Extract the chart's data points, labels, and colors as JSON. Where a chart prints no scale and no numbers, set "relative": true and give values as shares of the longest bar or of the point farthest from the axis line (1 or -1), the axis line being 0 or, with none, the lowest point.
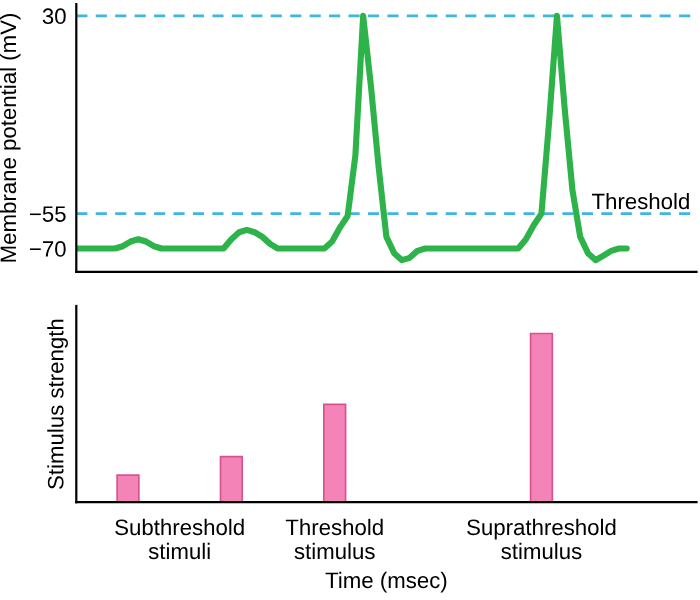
{
  "chart_data": [
    {
      "type": "line",
      "ylabel": "Membrane potential (mV)",
      "ylim": [
        -80,
        35
      ],
      "yticks": [
        30,
        -55,
        -70
      ],
      "tick_labels": "y",
      "grid": false,
      "categories": [
        null,
        null,
        null,
        null,
        null,
        null,
        null,
        null,
        null,
        null,
        null,
        null,
        null,
        null,
        null,
        null,
        null,
        null,
        null,
        null,
        null,
        null,
        null,
        null,
        null,
        null,
        null,
        null,
        null,
        null,
        null,
        null,
        null,
        null,
        null,
        null,
        null,
        null,
        null,
        null,
        null,
        null,
        null,
        null,
        null,
        null,
        null,
        null,
        null,
        null,
        null,
        null,
        null,
        null,
        null,
        null,
        null,
        null,
        null,
        null,
        null,
        null,
        null,
        null,
        null,
        null,
        null,
        null,
        null,
        null,
        null,
        null,
        null,
        null,
        null,
        null,
        null,
        null,
        null,
        null,
        null
      ],
      "series": [
        {
          "color": "#2db34a",
          "values": [
            -70,
            -70,
            -70,
            -70,
            -70,
            -70,
            -69,
            -67,
            -66,
            -67,
            -69,
            -70,
            -70,
            -70,
            -70,
            -70,
            -70,
            -70,
            -70,
            -70,
            -66,
            -63,
            -62,
            -63,
            -65,
            -68,
            -70,
            -70,
            -70,
            -70,
            -70,
            -70,
            -70,
            -67,
            -61,
            -56,
            -30,
            30,
            0,
            -35,
            -65,
            -72,
            -75,
            -74,
            -71,
            -70,
            -70,
            -70,
            -70,
            -70,
            -70,
            -70,
            -70,
            -70,
            -70,
            -70,
            -70,
            -70,
            -66,
            -60,
            -55,
            -15,
            30,
            -10,
            -45,
            -65,
            -72,
            -75,
            -73,
            -71,
            -70,
            -70,
            null,
            null,
            null,
            null,
            null,
            null,
            null,
            null,
            null
          ]
        }
      ],
      "ref_lines": [
        {
          "axis": "y",
          "value": 30,
          "color": "#3fb5e0",
          "line_style": "dashed"
        },
        {
          "axis": "y",
          "value": -55,
          "label": "Threshold",
          "color": "#3fb5e0",
          "line_style": "dashed"
        }
      ]
    },
    {
      "type": "bar",
      "relative": true,
      "xlabel": "Time (msec)",
      "ylabel": "Stimulus strength",
      "tick_labels": "x",
      "categories": [
        null,
        "Subthreshold\nstimuli",
        null,
        null,
        "Threshold\nstimulus",
        null,
        null,
        null,
        "Suprathreshold\nstimulus",
        null,
        null
      ],
      "values": [
        0.16,
        null,
        0.27,
        null,
        0.58,
        null,
        null,
        null,
        1,
        null,
        null
      ],
      "color": "#f483b8"
    }
  ]
}
